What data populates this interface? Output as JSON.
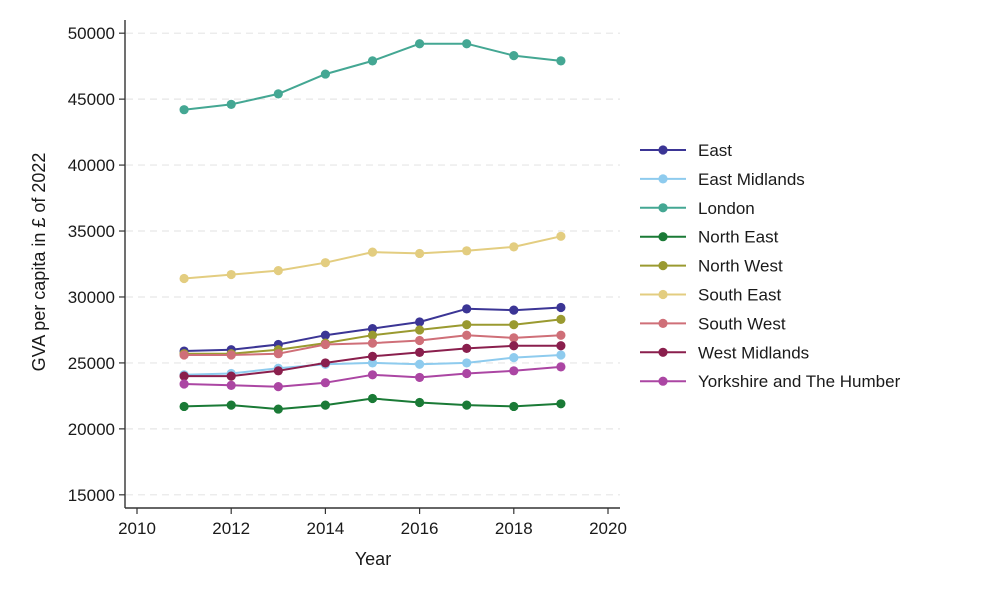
{
  "chart_data": {
    "type": "line",
    "title": "",
    "xlabel": "Year",
    "ylabel": "GVA per capita in £ of 2022",
    "xlim": [
      2010,
      2020
    ],
    "ylim": [
      14000,
      51000
    ],
    "xticks": [
      2010,
      2012,
      2014,
      2016,
      2018,
      2020
    ],
    "yticks": [
      15000,
      20000,
      25000,
      30000,
      35000,
      40000,
      45000,
      50000
    ],
    "grid": true,
    "legend_position": "right",
    "x": [
      2011,
      2012,
      2013,
      2014,
      2015,
      2016,
      2017,
      2018,
      2019
    ],
    "series": [
      {
        "name": "East",
        "color": "#3b3595",
        "values": [
          25900,
          26000,
          26400,
          27100,
          27600,
          28100,
          29100,
          29000,
          29200
        ]
      },
      {
        "name": "East Midlands",
        "color": "#8ecbee",
        "values": [
          24100,
          24200,
          24600,
          24900,
          25000,
          24900,
          25000,
          25400,
          25600
        ]
      },
      {
        "name": "London",
        "color": "#44a793",
        "values": [
          44200,
          44600,
          45400,
          46900,
          47900,
          49200,
          49200,
          48300,
          47900
        ]
      },
      {
        "name": "North East",
        "color": "#1a7a36",
        "values": [
          21700,
          21800,
          21500,
          21800,
          22300,
          22000,
          21800,
          21700,
          21900
        ]
      },
      {
        "name": "North West",
        "color": "#9a9a30",
        "values": [
          25700,
          25700,
          26000,
          26500,
          27100,
          27500,
          27900,
          27900,
          28300
        ]
      },
      {
        "name": "South East",
        "color": "#e3cd80",
        "values": [
          31400,
          31700,
          32000,
          32600,
          33400,
          33300,
          33500,
          33800,
          34600
        ]
      },
      {
        "name": "South West",
        "color": "#cf6f78",
        "values": [
          25600,
          25600,
          25700,
          26400,
          26500,
          26700,
          27100,
          26900,
          27100
        ]
      },
      {
        "name": "West Midlands",
        "color": "#8a1f4d",
        "values": [
          24000,
          24000,
          24400,
          25000,
          25500,
          25800,
          26100,
          26300,
          26300
        ]
      },
      {
        "name": "Yorkshire and The Humber",
        "color": "#ab46a3",
        "values": [
          23400,
          23300,
          23200,
          23500,
          24100,
          23900,
          24200,
          24400,
          24700
        ]
      }
    ]
  }
}
